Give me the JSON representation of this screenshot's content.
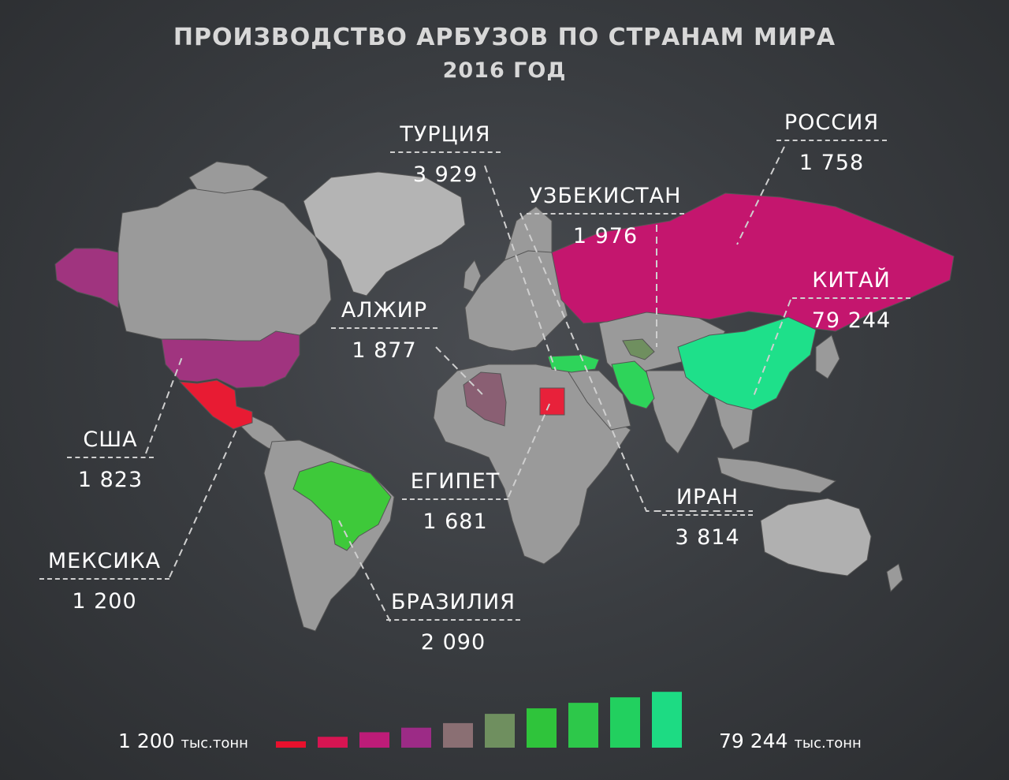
{
  "title": "ПРОИЗВОДСТВО АРБУЗОВ ПО СТРАНАМ МИРА",
  "subtitle": "2016 ГОД",
  "countries": [
    {
      "name": "ТУРЦИЯ",
      "value": "3 929",
      "color": "#7f7f7f"
    },
    {
      "name": "РОССИЯ",
      "value": "1 758",
      "color": "#c4166e"
    },
    {
      "name": "УЗБЕКИСТАН",
      "value": "1 976",
      "color": "#7a7a7a"
    },
    {
      "name": "КИТАЙ",
      "value": "79 244",
      "color": "#1ee08a"
    },
    {
      "name": "АЛЖИР",
      "value": "1 877",
      "color": "#8a5f73"
    },
    {
      "name": "США",
      "value": "1 823",
      "color": "#a0347f"
    },
    {
      "name": "ЕГИПЕТ",
      "value": "1 681",
      "color": "#e8213a"
    },
    {
      "name": "ИРАН",
      "value": "3 814",
      "color": "#2ed45a"
    },
    {
      "name": "МЕКСИКА",
      "value": "1 200",
      "color": "#e81b33"
    },
    {
      "name": "БРАЗИЛИЯ",
      "value": "2 090",
      "color": "#3ec93a"
    }
  ],
  "legend": {
    "min_label": "1 200",
    "max_label": "79 244",
    "unit": "тыс.тонн",
    "colors": [
      "#e8112d",
      "#d61552",
      "#bd1c78",
      "#9c2b86",
      "#8a6f73",
      "#6f8f5f",
      "#2fc43b",
      "#2dc84a",
      "#22d05f",
      "#1ddb83"
    ]
  }
}
